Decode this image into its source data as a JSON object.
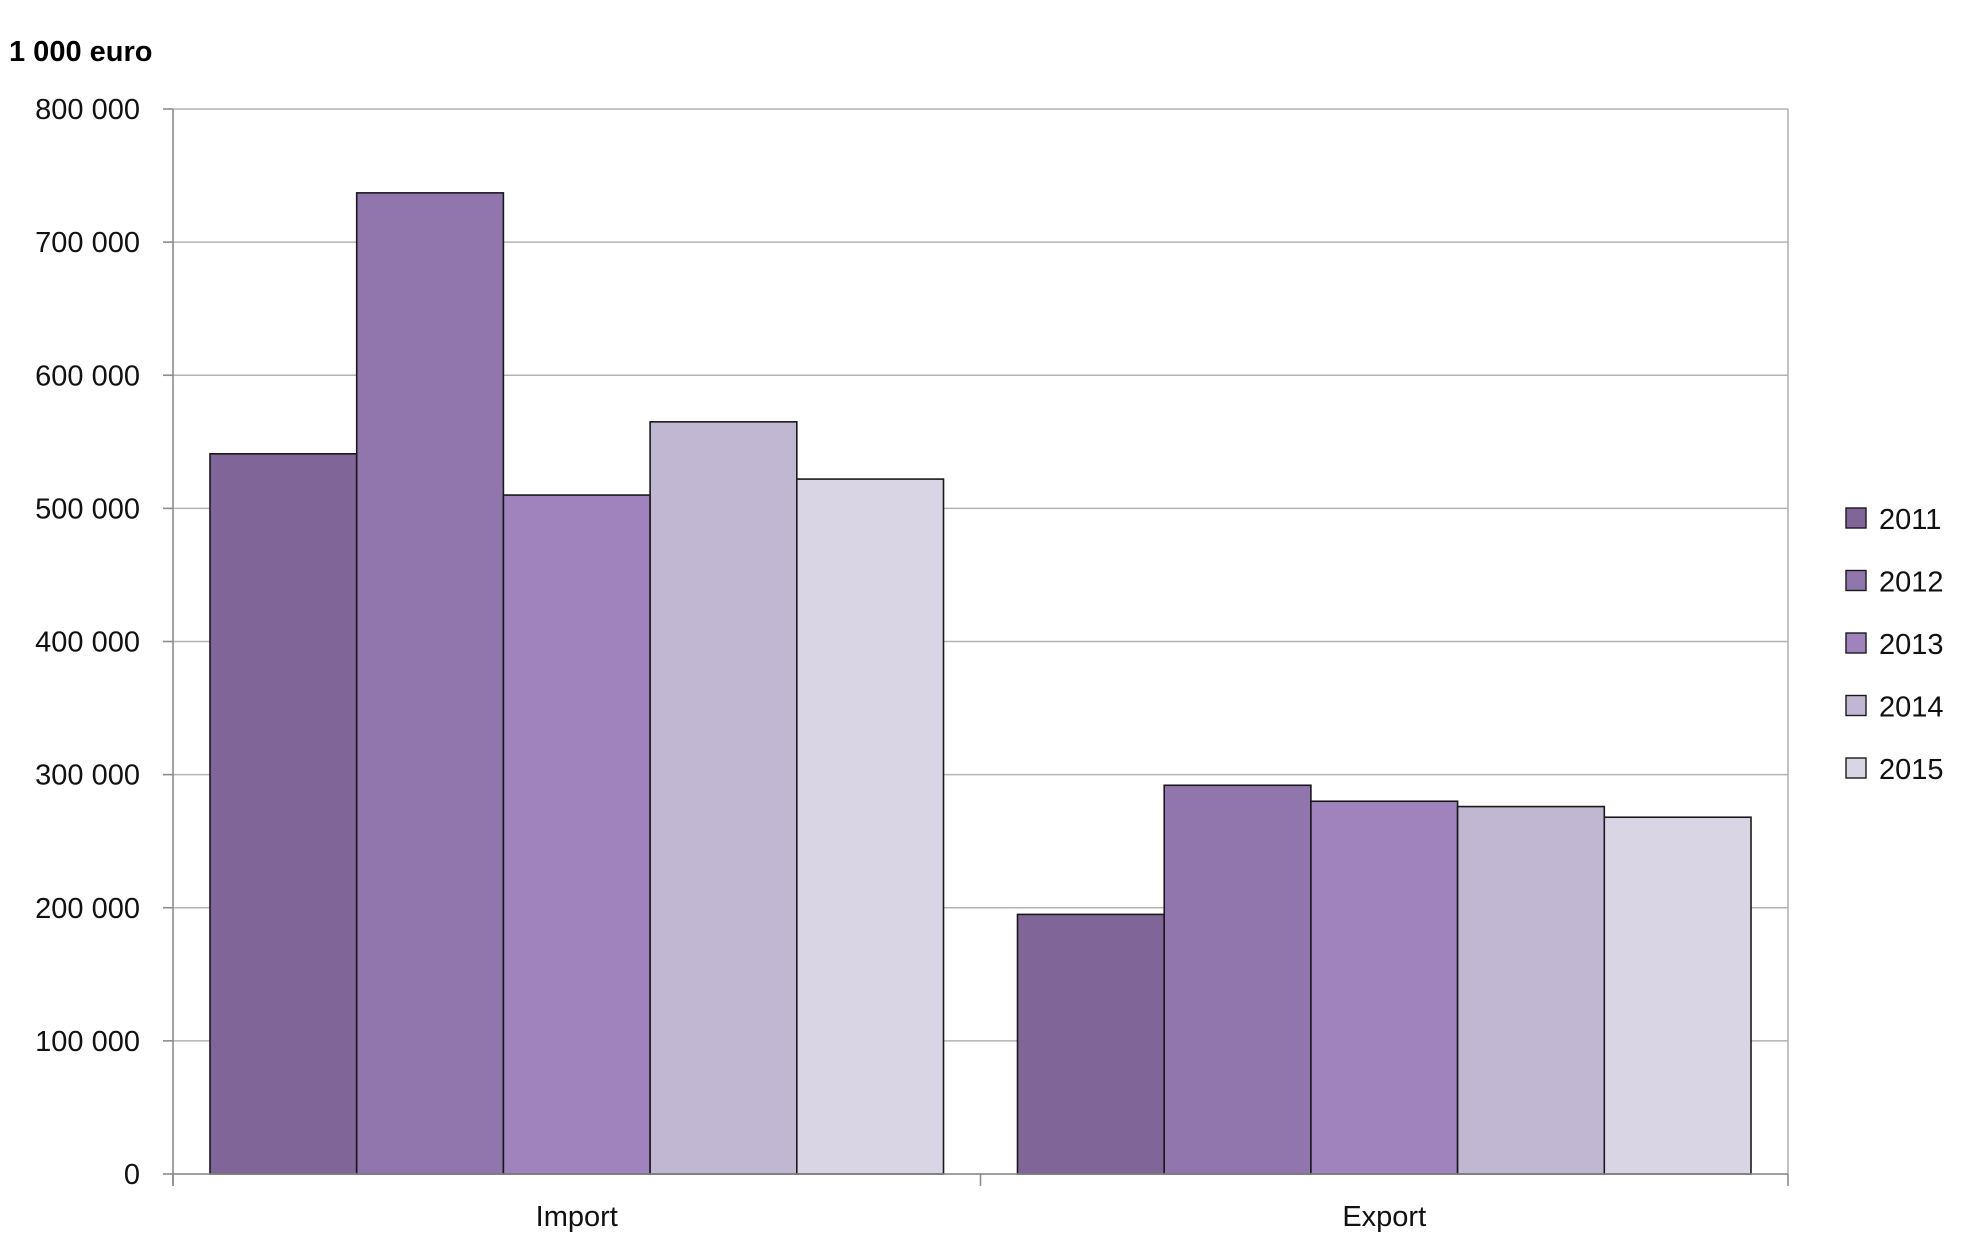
{
  "chart_data": {
    "type": "bar",
    "ylabel": "1 000 euro",
    "xlabel": "",
    "title": "",
    "categories": [
      "Import",
      "Export"
    ],
    "ylim": [
      0,
      800000
    ],
    "yticks": [
      0,
      100000,
      200000,
      300000,
      400000,
      500000,
      600000,
      700000,
      800000
    ],
    "ytick_labels": [
      "0",
      "100 000",
      "200 000",
      "300 000",
      "400 000",
      "500 000",
      "600 000",
      "700 000",
      "800 000"
    ],
    "grid": true,
    "legend_position": "right",
    "series": [
      {
        "name": "2011",
        "color": "#7f6598",
        "values": [
          541000,
          195000
        ]
      },
      {
        "name": "2012",
        "color": "#9176ae",
        "values": [
          737000,
          292000
        ]
      },
      {
        "name": "2013",
        "color": "#a083bd",
        "values": [
          510000,
          280000
        ]
      },
      {
        "name": "2014",
        "color": "#c2b7d3",
        "values": [
          565000,
          276000
        ]
      },
      {
        "name": "2015",
        "color": "#d9d5e5",
        "values": [
          522000,
          268000
        ]
      }
    ]
  }
}
